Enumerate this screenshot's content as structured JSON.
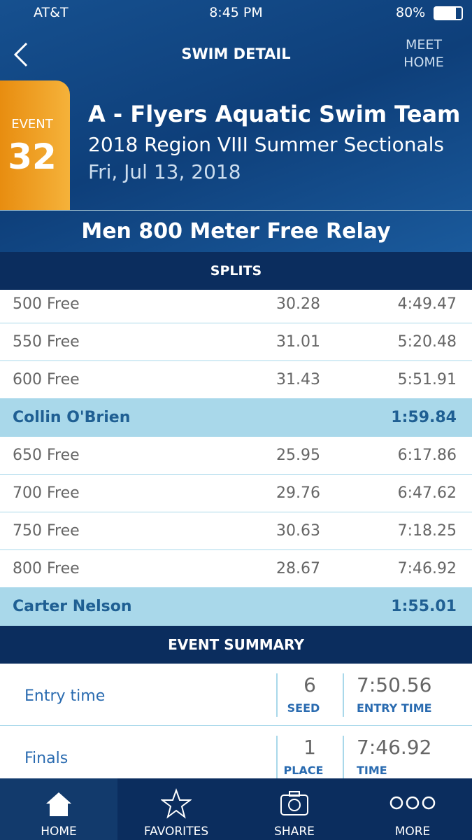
{
  "status_bar": {
    "carrier": "AT&T",
    "time": "8:45 PM",
    "battery": "80%"
  },
  "nav": {
    "title": "SWIM DETAIL",
    "right": "MEET HOME"
  },
  "header": {
    "event_label": "EVENT",
    "event_number": 32,
    "team": "A - Flyers Aquatic Swim Team",
    "meet": "2018 Region VIII Summer Sectionals",
    "date": "Fri, Jul 13, 2018"
  },
  "event_name": "Men 800 Meter Free Relay",
  "splits": {
    "title": "SPLITS",
    "rows": [
      {
        "label": "500 Free",
        "split": 30.28,
        "cumulative": "4:49.47"
      },
      {
        "label": "550 Free",
        "split": 31.01,
        "cumulative": "5:20.48"
      },
      {
        "label": "600 Free",
        "split": 31.43,
        "cumulative": "5:51.91"
      },
      {
        "name": "Collin O'Brien",
        "time": "1:59.84"
      },
      {
        "label": "650 Free",
        "split": 25.95,
        "cumulative": "6:17.86"
      },
      {
        "label": "700 Free",
        "split": 29.76,
        "cumulative": "6:47.62"
      },
      {
        "label": "750 Free",
        "split": 30.63,
        "cumulative": "7:18.25"
      },
      {
        "label": "800 Free",
        "split": 28.67,
        "cumulative": "7:46.92"
      },
      {
        "name": "Carter Nelson",
        "time": "1:55.01"
      }
    ]
  },
  "summary": {
    "title": "EVENT SUMMARY",
    "rows": [
      {
        "label": "Entry time",
        "rank": 6,
        "rank_label": "SEED",
        "time": "7:50.56",
        "time_label": "ENTRY TIME"
      },
      {
        "label": "Finals",
        "rank": 1,
        "rank_label": "PLACE",
        "time": "7:46.92",
        "time_label": "TIME"
      }
    ]
  },
  "tabs": [
    "HOME",
    "FAVORITES",
    "SHARE",
    "MORE"
  ]
}
